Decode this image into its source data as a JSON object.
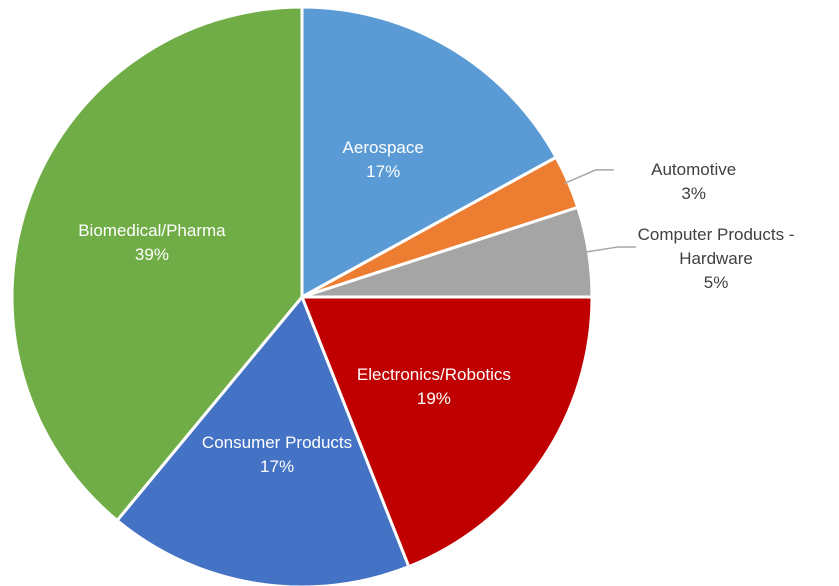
{
  "chart_data": {
    "type": "pie",
    "categories": [
      "Aerospace",
      "Automotive",
      "Computer Products - Hardware",
      "Electronics/Robotics",
      "Consumer Products",
      "Biomedical/Pharma"
    ],
    "values": [
      17,
      3,
      5,
      19,
      17,
      39
    ],
    "value_labels": [
      "17%",
      "3%",
      "5%",
      "19%",
      "17%",
      "39%"
    ],
    "colors": [
      "#5b9bd5",
      "#ed7d31",
      "#a5a5a5",
      "#c00000",
      "#4472c4",
      "#70ad47"
    ]
  }
}
